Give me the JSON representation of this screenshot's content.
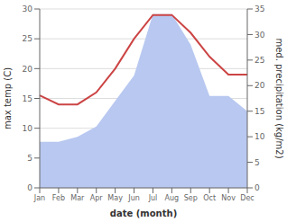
{
  "chart_data": {
    "type": "line",
    "categories": [
      "Jan",
      "Feb",
      "Mar",
      "Apr",
      "May",
      "Jun",
      "Jul",
      "Aug",
      "Sep",
      "Oct",
      "Nov",
      "Dec"
    ],
    "series": [
      {
        "type": "area",
        "axis": "y2",
        "color": "#b8c8f0",
        "values": [
          9.0,
          9.0,
          10.0,
          12.0,
          17.0,
          22.0,
          34.0,
          34.0,
          28.0,
          18.0,
          18.0,
          15.0
        ]
      },
      {
        "type": "line",
        "color": "#cc4444",
        "values": [
          15.5,
          14.0,
          14.0,
          16.0,
          20.0,
          25.0,
          29.0,
          29.0,
          26.0,
          22.0,
          19.0,
          19.0
        ]
      }
    ],
    "xlabel": "date (month)",
    "ylabel": "max temp (C)",
    "y2label": "med. precipitation (kg/m2)",
    "ylim": [
      0,
      30
    ],
    "yticks": [
      0,
      5,
      10,
      15,
      20,
      25,
      30
    ],
    "y2lim": [
      0,
      35
    ],
    "y2ticks": [
      0,
      5,
      10,
      15,
      20,
      25,
      30,
      35
    ],
    "grid": true
  }
}
